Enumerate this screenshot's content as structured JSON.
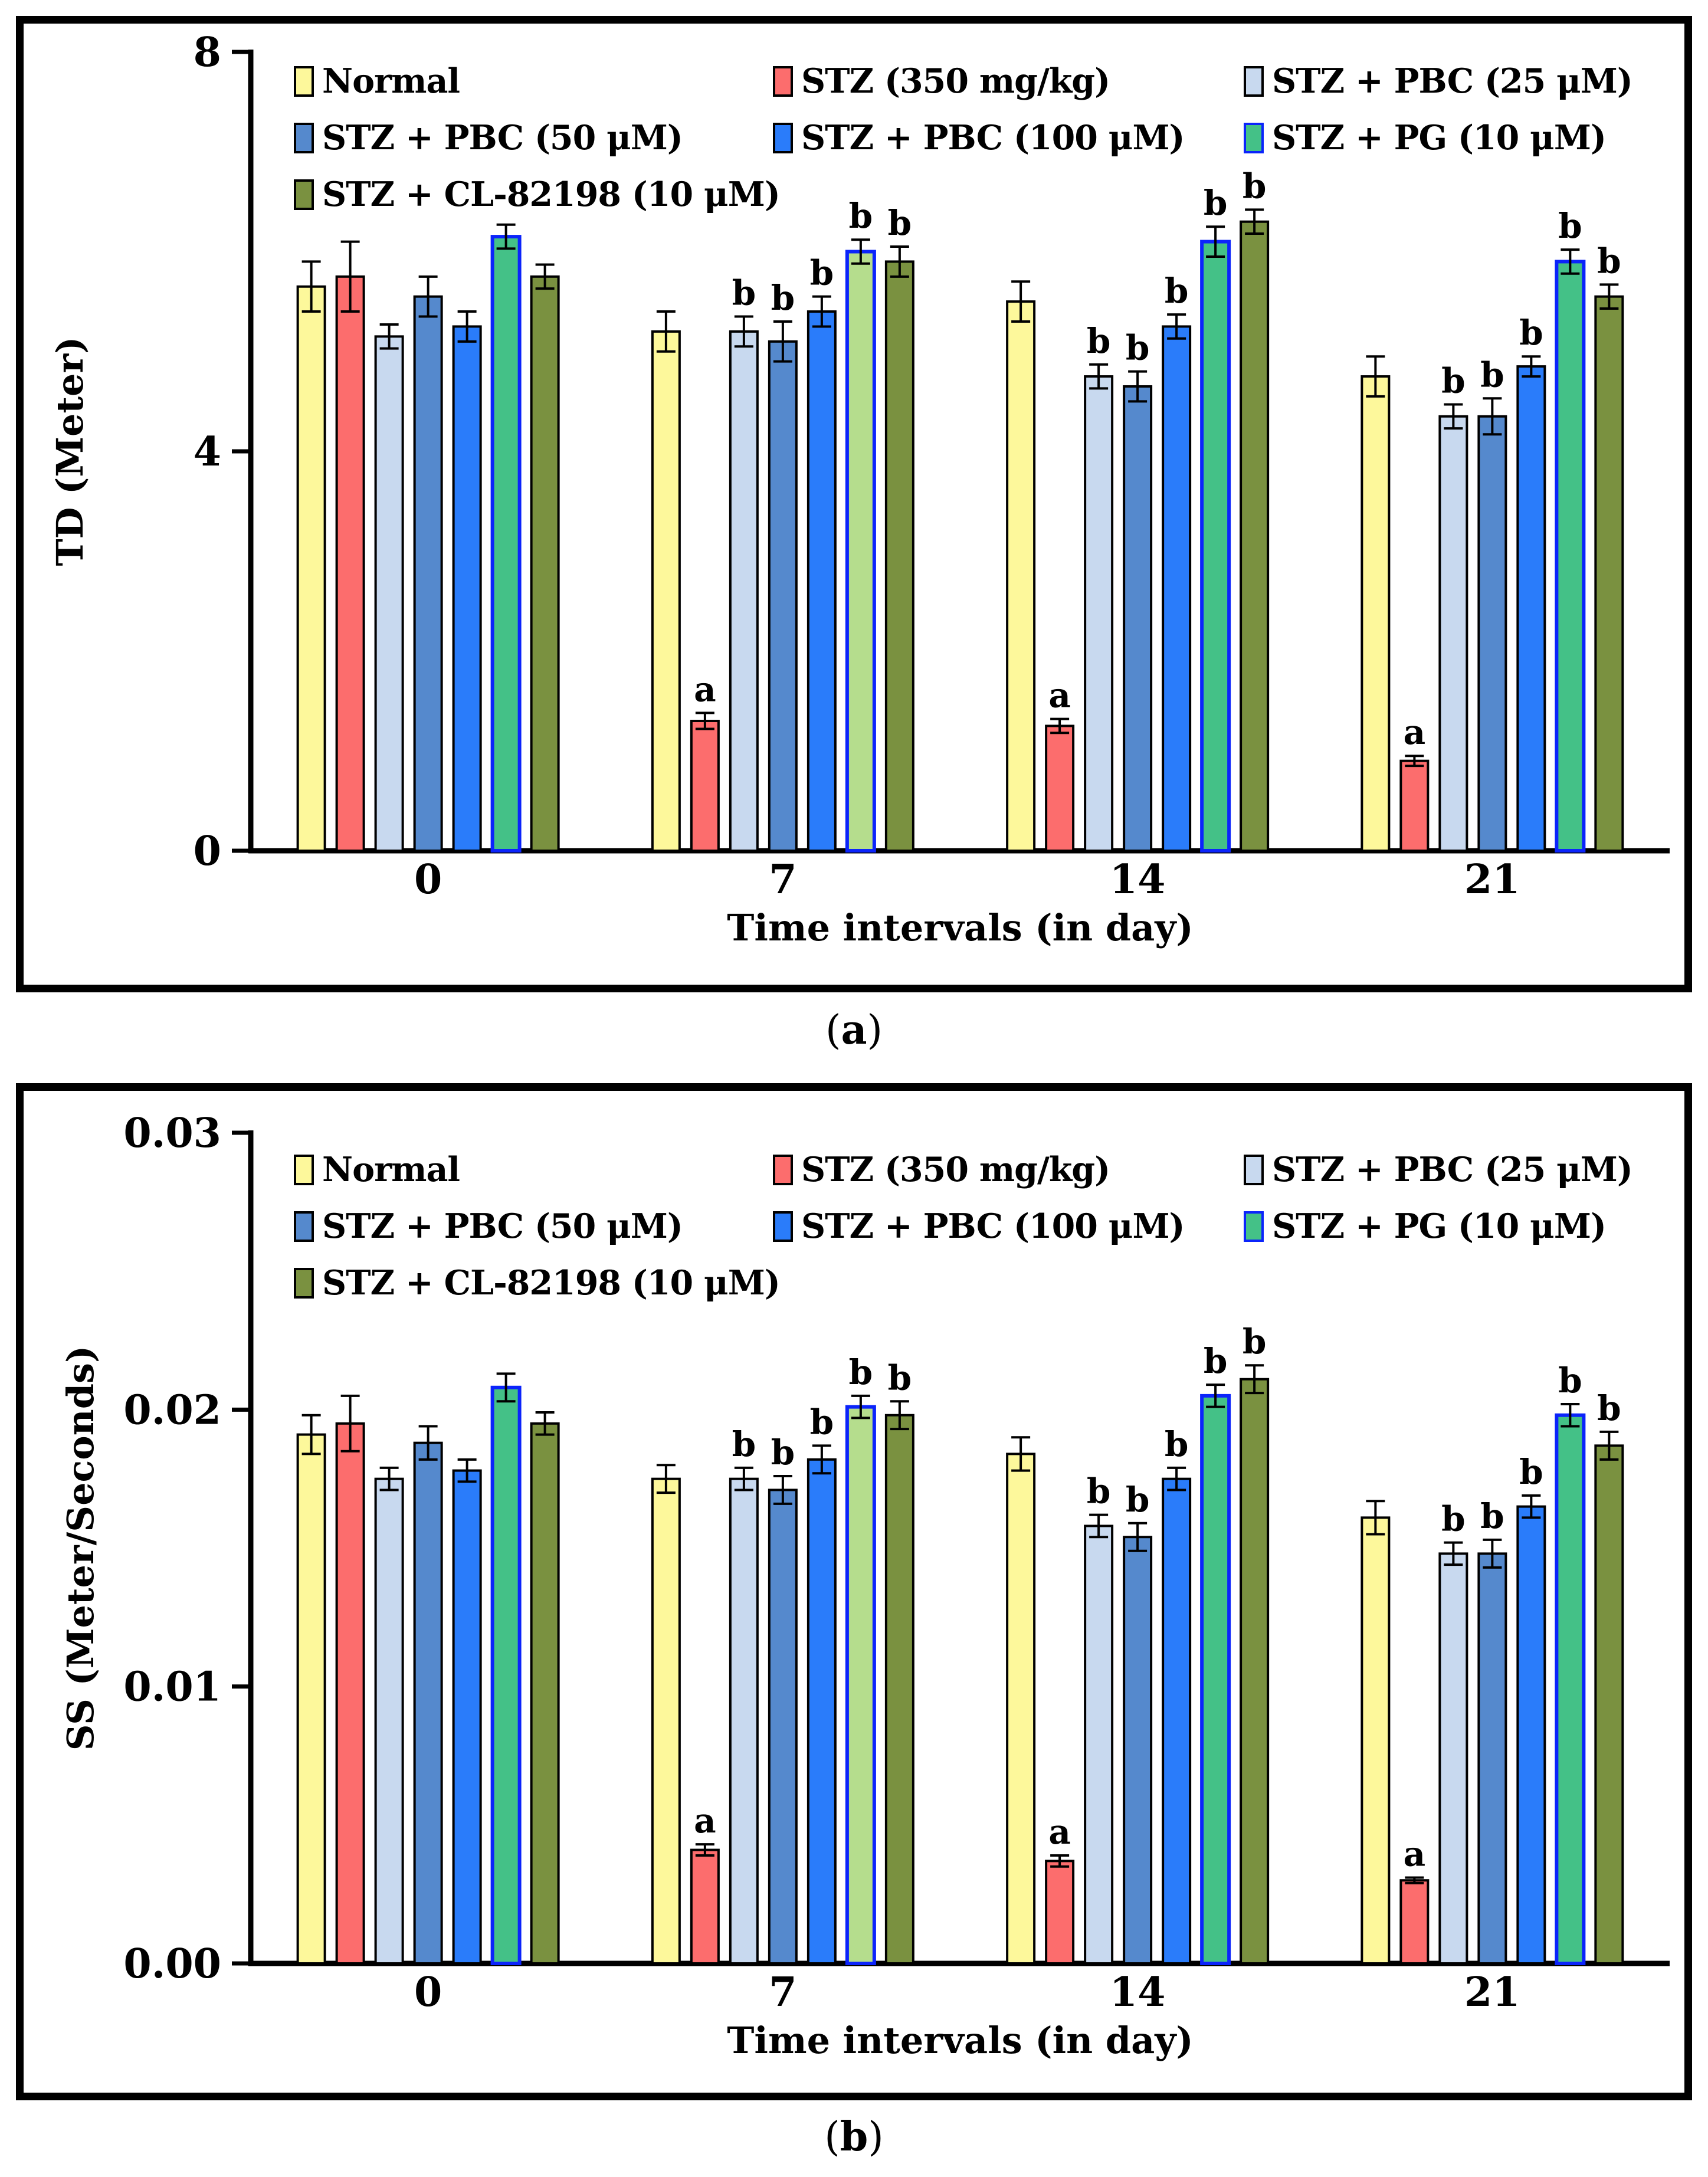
{
  "figure": {
    "captions": {
      "a": {
        "open": "(",
        "letter": "a",
        "close": ")"
      },
      "b": {
        "open": "(",
        "letter": "b",
        "close": ")"
      }
    }
  },
  "colors": {
    "background": "#FFFFFF",
    "frame": "#000000",
    "axis": "#000000",
    "bar_border": "#000000",
    "pg_border": "#0B24FB",
    "error_bar": "#000000",
    "text": "#000000"
  },
  "chart_data": [
    {
      "type": "bar",
      "panel": "a",
      "title": "",
      "xlabel": "Time intervals (in day)",
      "ylabel": "TD (Meter)",
      "categories": [
        "0",
        "7",
        "14",
        "21"
      ],
      "ylim": [
        0,
        8
      ],
      "yticks": [
        {
          "value": 0,
          "label": "0"
        },
        {
          "value": 4,
          "label": "4"
        },
        {
          "value": 8,
          "label": "8"
        }
      ],
      "grid": "off",
      "legend_position": "inside-top-left",
      "series": [
        {
          "name": "Normal",
          "color": "#FDF89B",
          "values": [
            5.65,
            5.2,
            5.5,
            4.75
          ],
          "errors": [
            0.25,
            0.2,
            0.2,
            0.2
          ],
          "letters": [
            "",
            "",
            "",
            ""
          ]
        },
        {
          "name": "STZ (350 mg/kg)",
          "color": "#FC6D6D",
          "values": [
            5.75,
            1.3,
            1.25,
            0.9
          ],
          "errors": [
            0.35,
            0.08,
            0.07,
            0.05
          ],
          "letters": [
            "",
            "a",
            "a",
            "a"
          ]
        },
        {
          "name": "STZ + PBC (25 μM)",
          "color": "#C8D9EF",
          "values": [
            5.15,
            5.2,
            4.75,
            4.35
          ],
          "errors": [
            0.12,
            0.15,
            0.12,
            0.12
          ],
          "letters": [
            "",
            "b",
            "b",
            "b"
          ]
        },
        {
          "name": "STZ + PBC (50 μM)",
          "color": "#5589CD",
          "values": [
            5.55,
            5.1,
            4.65,
            4.35
          ],
          "errors": [
            0.2,
            0.2,
            0.15,
            0.18
          ],
          "letters": [
            "",
            "b",
            "b",
            "b"
          ]
        },
        {
          "name": "STZ + PBC (100 μM)",
          "color": "#2A7CFA",
          "values": [
            5.25,
            5.4,
            5.25,
            4.85
          ],
          "errors": [
            0.15,
            0.15,
            0.12,
            0.1
          ],
          "letters": [
            "",
            "b",
            "b",
            "b"
          ]
        },
        {
          "name": "STZ + PG (10 μM)",
          "color": "#44C187",
          "border": "#0B24FB",
          "point_colors": [
            null,
            "#B5DD8D",
            null,
            null
          ],
          "values": [
            6.15,
            6.0,
            6.1,
            5.9
          ],
          "errors": [
            0.12,
            0.12,
            0.15,
            0.12
          ],
          "letters": [
            "",
            "b",
            "b",
            "b"
          ]
        },
        {
          "name": "STZ + CL-82198 (10 μM)",
          "color": "#7A9140",
          "values": [
            5.75,
            5.9,
            6.3,
            5.55
          ],
          "errors": [
            0.12,
            0.15,
            0.12,
            0.12
          ],
          "letters": [
            "",
            "b",
            "b",
            "b"
          ]
        }
      ]
    },
    {
      "type": "bar",
      "panel": "b",
      "title": "",
      "xlabel": "Time intervals (in day)",
      "ylabel": "SS (Meter/Seconds)",
      "categories": [
        "0",
        "7",
        "14",
        "21"
      ],
      "ylim": [
        0,
        0.03
      ],
      "yticks": [
        {
          "value": 0,
          "label": "0.00"
        },
        {
          "value": 0.01,
          "label": "0.01"
        },
        {
          "value": 0.02,
          "label": "0.02"
        },
        {
          "value": 0.03,
          "label": "0.03"
        }
      ],
      "grid": "off",
      "legend_position": "inside-top-left",
      "series": [
        {
          "name": "Normal",
          "color": "#FDF89B",
          "values": [
            0.0191,
            0.0175,
            0.0184,
            0.0161
          ],
          "errors": [
            0.0007,
            0.0005,
            0.0006,
            0.0006
          ],
          "letters": [
            "",
            "",
            "",
            ""
          ]
        },
        {
          "name": "STZ (350 mg/kg)",
          "color": "#FC6D6D",
          "values": [
            0.0195,
            0.0041,
            0.0037,
            0.003
          ],
          "errors": [
            0.001,
            0.0002,
            0.0002,
            0.0001
          ],
          "letters": [
            "",
            "a",
            "a",
            "a"
          ]
        },
        {
          "name": "STZ + PBC (25 μM)",
          "color": "#C8D9EF",
          "values": [
            0.0175,
            0.0175,
            0.0158,
            0.0148
          ],
          "errors": [
            0.0004,
            0.0004,
            0.0004,
            0.0004
          ],
          "letters": [
            "",
            "b",
            "b",
            "b"
          ]
        },
        {
          "name": "STZ + PBC (50 μM)",
          "color": "#5589CD",
          "values": [
            0.0188,
            0.0171,
            0.0154,
            0.0148
          ],
          "errors": [
            0.0006,
            0.0005,
            0.0005,
            0.0005
          ],
          "letters": [
            "",
            "b",
            "b",
            "b"
          ]
        },
        {
          "name": "STZ + PBC (100 μM)",
          "color": "#2A7CFA",
          "values": [
            0.0178,
            0.0182,
            0.0175,
            0.0165
          ],
          "errors": [
            0.0004,
            0.0005,
            0.0004,
            0.0004
          ],
          "letters": [
            "",
            "b",
            "b",
            "b"
          ]
        },
        {
          "name": "STZ + PG (10 μM)",
          "color": "#44C187",
          "border": "#0B24FB",
          "point_colors": [
            null,
            "#B5DD8D",
            null,
            null
          ],
          "values": [
            0.0208,
            0.0201,
            0.0205,
            0.0198
          ],
          "errors": [
            0.0005,
            0.0004,
            0.0004,
            0.0004
          ],
          "letters": [
            "",
            "b",
            "b",
            "b"
          ]
        },
        {
          "name": "STZ + CL-82198 (10 μM)",
          "color": "#7A9140",
          "values": [
            0.0195,
            0.0198,
            0.0211,
            0.0187
          ],
          "errors": [
            0.0004,
            0.0005,
            0.0005,
            0.0005
          ],
          "letters": [
            "",
            "b",
            "b",
            "b"
          ]
        }
      ]
    }
  ]
}
